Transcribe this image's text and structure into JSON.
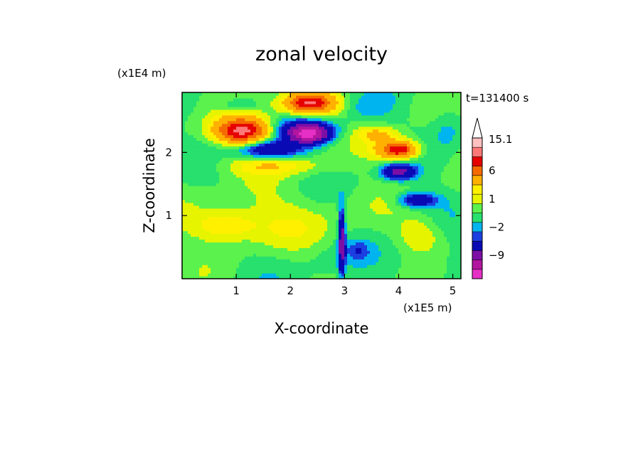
{
  "chart_data": {
    "type": "heatmap",
    "title": "zonal velocity",
    "xlabel": "X-coordinate",
    "ylabel": "Z-coordinate",
    "x_unit": "(x1E5 m)",
    "y_unit": "(x1E4 m)",
    "time_label": "t=131400 s",
    "xlim": [
      0,
      5.15
    ],
    "ylim": [
      0,
      2.95
    ],
    "x_ticks": [
      1,
      2,
      3,
      4,
      5
    ],
    "y_ticks": [
      1,
      2
    ],
    "x_tick_labels": [
      "1",
      "2",
      "3",
      "4",
      "5"
    ],
    "y_tick_labels": [
      "1",
      "2"
    ],
    "colorbar": {
      "levels": [
        -16,
        -13,
        -9,
        -6,
        -3,
        -2,
        -1,
        0,
        1,
        2,
        3,
        6,
        9,
        12,
        15.1
      ],
      "labels": [
        "15.1",
        "6",
        "1",
        "−2",
        "−9"
      ],
      "label_values": [
        15.1,
        6,
        1,
        -2,
        -9
      ],
      "colors": [
        "#e62fc4",
        "#b2169f",
        "#7d0fa6",
        "#0a0ab5",
        "#1b3fe0",
        "#00b4ef",
        "#27e06d",
        "#5bf24d",
        "#e6f400",
        "#fff000",
        "#ffb000",
        "#f56a00",
        "#e60000",
        "#ff7878",
        "#ffc0c0"
      ],
      "extend_max": true
    },
    "blobs": [
      {
        "x": 1.15,
        "z": 2.35,
        "rx": 0.55,
        "rz": 0.25,
        "v": 5
      },
      {
        "x": 1.1,
        "z": 2.35,
        "rx": 0.4,
        "rz": 0.16,
        "v": 8
      },
      {
        "x": 2.4,
        "z": 2.75,
        "rx": 0.6,
        "rz": 0.22,
        "v": 5
      },
      {
        "x": 2.35,
        "z": 2.8,
        "rx": 0.35,
        "rz": 0.12,
        "v": 8
      },
      {
        "x": 3.95,
        "z": 2.05,
        "rx": 0.45,
        "rz": 0.18,
        "v": 5
      },
      {
        "x": 4.0,
        "z": 2.05,
        "rx": 0.25,
        "rz": 0.1,
        "v": 8
      },
      {
        "x": 1.05,
        "z": 2.75,
        "rx": 0.35,
        "rz": 0.1,
        "v": -2
      },
      {
        "x": 2.3,
        "z": 2.35,
        "rx": 0.55,
        "rz": 0.2,
        "v": -6
      },
      {
        "x": 2.35,
        "z": 2.3,
        "rx": 0.3,
        "rz": 0.12,
        "v": -10
      },
      {
        "x": 1.6,
        "z": 2.05,
        "rx": 0.55,
        "rz": 0.14,
        "v": -6
      },
      {
        "x": 4.0,
        "z": 1.7,
        "rx": 0.3,
        "rz": 0.12,
        "v": -7
      },
      {
        "x": 4.35,
        "z": 1.25,
        "rx": 0.35,
        "rz": 0.12,
        "v": -5
      },
      {
        "x": 3.3,
        "z": 2.7,
        "rx": 0.55,
        "rz": 0.2,
        "v": -1.5
      },
      {
        "x": 4.9,
        "z": 2.4,
        "rx": 0.3,
        "rz": 0.35,
        "v": -1.5
      },
      {
        "x": 1.8,
        "z": 0.9,
        "rx": 1.3,
        "rz": 0.5,
        "v": 1.5
      },
      {
        "x": 0.8,
        "z": 0.85,
        "rx": 0.6,
        "rz": 0.25,
        "v": 3
      },
      {
        "x": 4.4,
        "z": 0.7,
        "rx": 0.4,
        "rz": 0.3,
        "v": 2
      },
      {
        "x": 2.1,
        "z": 0.35,
        "rx": 1.5,
        "rz": 0.35,
        "v": -0.5
      },
      {
        "x": 4.3,
        "z": 0.3,
        "rx": 0.8,
        "rz": 0.3,
        "v": -0.8
      },
      {
        "x": 2.95,
        "z": 0.6,
        "rx": 0.06,
        "rz": 0.5,
        "v": -8
      },
      {
        "x": 3.25,
        "z": 0.45,
        "rx": 0.2,
        "rz": 0.15,
        "v": -2
      },
      {
        "x": 1.7,
        "z": 1.8,
        "rx": 0.9,
        "rz": 0.15,
        "v": 2.5
      },
      {
        "x": 3.6,
        "z": 2.3,
        "rx": 0.35,
        "rz": 0.12,
        "v": 3
      }
    ]
  }
}
